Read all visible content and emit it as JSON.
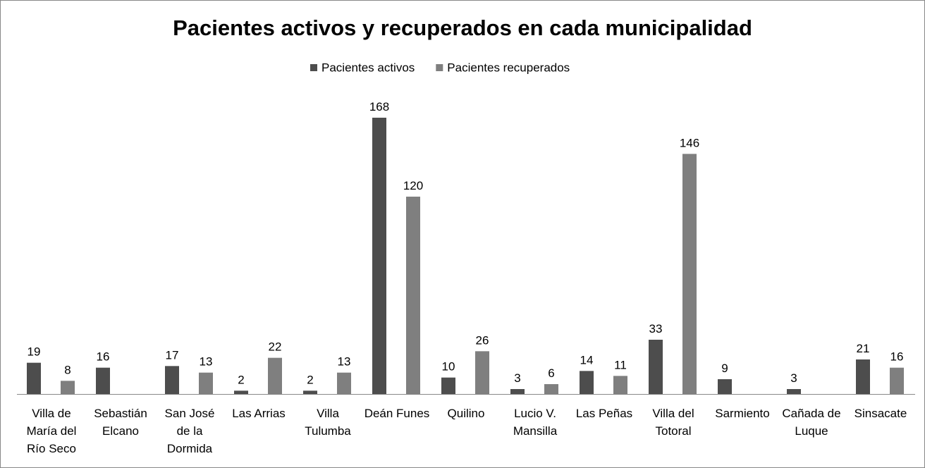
{
  "chart_data": {
    "type": "bar",
    "title": "Pacientes activos y recuperados en cada municipalidad",
    "categories": [
      "Villa de María del Río Seco",
      "Sebastián Elcano",
      "San José de la Dormida",
      "Las Arrias",
      "Villa Tulumba",
      "Deán Funes",
      "Quilino",
      "Lucio V. Mansilla",
      "Las Peñas",
      "Villa del Totoral",
      "Sarmiento",
      "Cañada de Luque",
      "Sinsacate"
    ],
    "series": [
      {
        "name": "Pacientes activos",
        "color": "#4d4d4d",
        "values": [
          19,
          16,
          17,
          2,
          2,
          168,
          10,
          3,
          14,
          33,
          9,
          3,
          21
        ]
      },
      {
        "name": "Pacientes recuperados",
        "color": "#7f7f7f",
        "values": [
          8,
          null,
          13,
          22,
          13,
          120,
          26,
          6,
          11,
          146,
          null,
          null,
          16
        ]
      }
    ],
    "ylim": [
      0,
      180
    ],
    "legend": "top",
    "data_labels": true
  }
}
